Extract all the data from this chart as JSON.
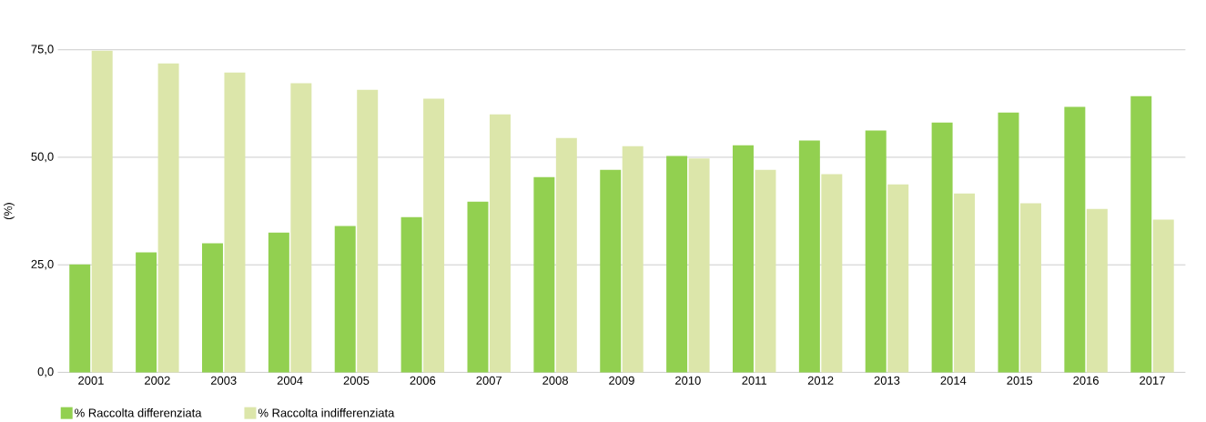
{
  "chart_data": {
    "type": "bar",
    "ylabel": "(%)",
    "categories": [
      "2001",
      "2002",
      "2003",
      "2004",
      "2005",
      "2006",
      "2007",
      "2008",
      "2009",
      "2010",
      "2011",
      "2012",
      "2013",
      "2014",
      "2015",
      "2016",
      "2017"
    ],
    "series": [
      {
        "name": "% Raccolta differenziata",
        "color": "#92d050",
        "values": [
          25.1,
          27.9,
          30.0,
          32.5,
          34.0,
          36.1,
          39.7,
          45.4,
          47.1,
          50.3,
          52.8,
          53.9,
          56.2,
          58.1,
          60.4,
          61.7,
          64.2
        ]
      },
      {
        "name": "% Raccolta indifferenziata",
        "color": "#dce6aa",
        "values": [
          74.8,
          71.8,
          69.7,
          67.2,
          65.7,
          63.6,
          60.0,
          54.5,
          52.6,
          49.7,
          47.1,
          46.1,
          43.7,
          41.6,
          39.3,
          38.0,
          35.5
        ]
      }
    ],
    "ylim": [
      0,
      75
    ],
    "yticks": [
      {
        "value": 0,
        "label": "0,0"
      },
      {
        "value": 25,
        "label": "25,0"
      },
      {
        "value": 50,
        "label": "50,0"
      },
      {
        "value": 75,
        "label": "75,0"
      }
    ],
    "grid": "y",
    "legend": "bottom left"
  }
}
